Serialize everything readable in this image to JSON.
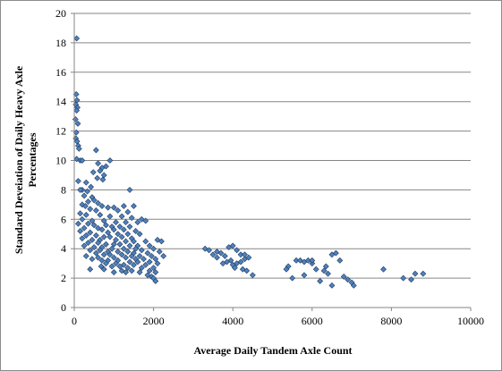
{
  "chart_data": {
    "type": "scatter",
    "title": "",
    "xlabel": "Average Daily Tandem Axle Count",
    "ylabel_lines": [
      "Standard Deveiation of Daily Heavy Axle",
      "Percentages"
    ],
    "xlim": [
      0,
      10000
    ],
    "ylim": [
      0,
      20
    ],
    "x_ticks": [
      0,
      2000,
      4000,
      6000,
      8000,
      10000
    ],
    "y_ticks": [
      0,
      2,
      4,
      6,
      8,
      10,
      12,
      14,
      16,
      18,
      20
    ],
    "grid": "horizontal",
    "legend": "none",
    "marker": "diamond",
    "marker_color": "#4f81bd",
    "points": [
      [
        60,
        18.3
      ],
      [
        50,
        14.5
      ],
      [
        70,
        14.1
      ],
      [
        40,
        13.8
      ],
      [
        80,
        13.6
      ],
      [
        60,
        13.4
      ],
      [
        30,
        12.8
      ],
      [
        90,
        12.5
      ],
      [
        50,
        11.9
      ],
      [
        40,
        11.5
      ],
      [
        70,
        11.3
      ],
      [
        100,
        11.0
      ],
      [
        120,
        10.8
      ],
      [
        60,
        10.1
      ],
      [
        150,
        10.0
      ],
      [
        200,
        10.0
      ],
      [
        900,
        10.0
      ],
      [
        550,
        10.7
      ],
      [
        600,
        9.8
      ],
      [
        700,
        9.5
      ],
      [
        800,
        9.6
      ],
      [
        650,
        9.3
      ],
      [
        480,
        9.2
      ],
      [
        750,
        9.0
      ],
      [
        580,
        8.8
      ],
      [
        720,
        8.7
      ],
      [
        100,
        8.6
      ],
      [
        300,
        8.5
      ],
      [
        420,
        8.2
      ],
      [
        200,
        8.0
      ],
      [
        150,
        8.0
      ],
      [
        330,
        7.9
      ],
      [
        1400,
        8.0
      ],
      [
        250,
        7.6
      ],
      [
        450,
        7.5
      ],
      [
        500,
        7.3
      ],
      [
        350,
        7.2
      ],
      [
        600,
        7.1
      ],
      [
        200,
        7.0
      ],
      [
        280,
        6.9
      ],
      [
        700,
        6.9
      ],
      [
        850,
        6.8
      ],
      [
        1000,
        6.8
      ],
      [
        1250,
        6.9
      ],
      [
        1500,
        6.9
      ],
      [
        400,
        6.7
      ],
      [
        550,
        6.6
      ],
      [
        1100,
        6.6
      ],
      [
        1350,
        6.5
      ],
      [
        150,
        6.4
      ],
      [
        300,
        6.3
      ],
      [
        650,
        6.3
      ],
      [
        900,
        6.2
      ],
      [
        1200,
        6.2
      ],
      [
        1450,
        6.1
      ],
      [
        1700,
        6.0
      ],
      [
        200,
        6.0
      ],
      [
        450,
        5.9
      ],
      [
        750,
        5.9
      ],
      [
        1050,
        5.8
      ],
      [
        1300,
        5.8
      ],
      [
        1600,
        5.8
      ],
      [
        1800,
        5.9
      ],
      [
        100,
        5.7
      ],
      [
        350,
        5.7
      ],
      [
        500,
        5.6
      ],
      [
        800,
        5.6
      ],
      [
        950,
        5.5
      ],
      [
        1150,
        5.5
      ],
      [
        1400,
        5.5
      ],
      [
        250,
        5.4
      ],
      [
        600,
        5.4
      ],
      [
        700,
        5.3
      ],
      [
        1000,
        5.3
      ],
      [
        1250,
        5.3
      ],
      [
        1550,
        5.2
      ],
      [
        150,
        5.2
      ],
      [
        400,
        5.1
      ],
      [
        850,
        5.1
      ],
      [
        1100,
        5.0
      ],
      [
        1350,
        5.0
      ],
      [
        1650,
        5.0
      ],
      [
        300,
        4.9
      ],
      [
        550,
        4.9
      ],
      [
        750,
        4.8
      ],
      [
        900,
        4.8
      ],
      [
        1200,
        4.8
      ],
      [
        1450,
        4.7
      ],
      [
        200,
        4.7
      ],
      [
        450,
        4.6
      ],
      [
        650,
        4.6
      ],
      [
        1050,
        4.6
      ],
      [
        1300,
        4.5
      ],
      [
        1500,
        4.5
      ],
      [
        1800,
        4.5
      ],
      [
        2100,
        4.6
      ],
      [
        2200,
        4.5
      ],
      [
        350,
        4.4
      ],
      [
        600,
        4.4
      ],
      [
        800,
        4.3
      ],
      [
        1000,
        4.3
      ],
      [
        1150,
        4.3
      ],
      [
        1400,
        4.2
      ],
      [
        1600,
        4.2
      ],
      [
        1900,
        4.2
      ],
      [
        500,
        4.1
      ],
      [
        700,
        4.1
      ],
      [
        950,
        4.0
      ],
      [
        1250,
        4.0
      ],
      [
        1550,
        4.0
      ],
      [
        1700,
        3.9
      ],
      [
        2000,
        4.0
      ],
      [
        400,
        3.9
      ],
      [
        650,
        3.9
      ],
      [
        850,
        3.8
      ],
      [
        1100,
        3.8
      ],
      [
        1350,
        3.8
      ],
      [
        1500,
        3.7
      ],
      [
        1850,
        3.7
      ],
      [
        2150,
        3.8
      ],
      [
        550,
        3.7
      ],
      [
        750,
        3.6
      ],
      [
        900,
        3.6
      ],
      [
        1200,
        3.6
      ],
      [
        1450,
        3.5
      ],
      [
        1650,
        3.5
      ],
      [
        1950,
        3.5
      ],
      [
        2250,
        3.5
      ],
      [
        600,
        3.4
      ],
      [
        1000,
        3.4
      ],
      [
        1300,
        3.4
      ],
      [
        1550,
        3.3
      ],
      [
        1750,
        3.3
      ],
      [
        2050,
        3.3
      ],
      [
        450,
        3.3
      ],
      [
        700,
        3.2
      ],
      [
        850,
        3.2
      ],
      [
        1100,
        3.2
      ],
      [
        1400,
        3.1
      ],
      [
        1600,
        3.1
      ],
      [
        1900,
        3.1
      ],
      [
        2100,
        3.0
      ],
      [
        800,
        3.0
      ],
      [
        1050,
        3.0
      ],
      [
        1250,
        2.9
      ],
      [
        1500,
        2.9
      ],
      [
        1800,
        2.9
      ],
      [
        950,
        2.8
      ],
      [
        1150,
        2.8
      ],
      [
        1350,
        2.7
      ],
      [
        1700,
        2.7
      ],
      [
        2000,
        2.7
      ],
      [
        400,
        2.6
      ],
      [
        750,
        2.6
      ],
      [
        1200,
        2.5
      ],
      [
        1450,
        2.5
      ],
      [
        1900,
        2.5
      ],
      [
        1000,
        2.4
      ],
      [
        1300,
        2.4
      ],
      [
        1650,
        2.4
      ],
      [
        2050,
        2.4
      ],
      [
        1850,
        2.2
      ],
      [
        1950,
        2.1
      ],
      [
        2000,
        2.0
      ],
      [
        2050,
        1.8
      ],
      [
        680,
        2.8
      ],
      [
        300,
        3.5
      ],
      [
        250,
        4.2
      ],
      [
        3300,
        4.0
      ],
      [
        3400,
        3.9
      ],
      [
        3600,
        3.8
      ],
      [
        3500,
        3.6
      ],
      [
        3700,
        3.7
      ],
      [
        3900,
        4.1
      ],
      [
        4000,
        4.2
      ],
      [
        3800,
        3.5
      ],
      [
        3950,
        3.2
      ],
      [
        4100,
        3.9
      ],
      [
        4200,
        3.6
      ],
      [
        4300,
        3.3
      ],
      [
        4100,
        3.0
      ],
      [
        3850,
        3.1
      ],
      [
        4000,
        2.9
      ],
      [
        4250,
        2.6
      ],
      [
        4400,
        3.4
      ],
      [
        4350,
        2.5
      ],
      [
        3600,
        3.4
      ],
      [
        3750,
        3.0
      ],
      [
        4500,
        2.2
      ],
      [
        4200,
        3.1
      ],
      [
        4300,
        3.6
      ],
      [
        4050,
        2.7
      ],
      [
        5400,
        2.8
      ],
      [
        5350,
        2.6
      ],
      [
        5600,
        3.2
      ],
      [
        5700,
        3.2
      ],
      [
        5800,
        3.1
      ],
      [
        5900,
        3.2
      ],
      [
        6000,
        3.0
      ],
      [
        6100,
        2.6
      ],
      [
        6300,
        2.5
      ],
      [
        6400,
        2.3
      ],
      [
        6500,
        3.6
      ],
      [
        6600,
        3.7
      ],
      [
        6700,
        3.2
      ],
      [
        6800,
        2.1
      ],
      [
        6900,
        1.9
      ],
      [
        7000,
        1.7
      ],
      [
        7050,
        1.5
      ],
      [
        6500,
        1.5
      ],
      [
        6200,
        1.8
      ],
      [
        5800,
        2.2
      ],
      [
        5500,
        2.0
      ],
      [
        6000,
        3.2
      ],
      [
        6350,
        2.8
      ],
      [
        7800,
        2.6
      ],
      [
        8300,
        2.0
      ],
      [
        8500,
        1.9
      ],
      [
        8600,
        2.3
      ],
      [
        8800,
        2.3
      ]
    ]
  }
}
